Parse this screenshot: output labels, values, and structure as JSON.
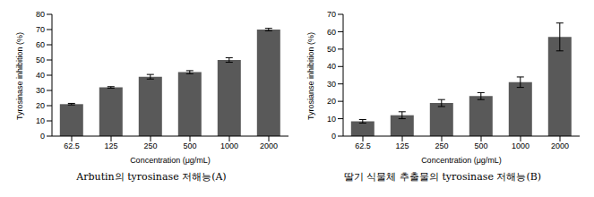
{
  "chart_data": [
    {
      "type": "bar",
      "title": "Arbutin의 tyrosinase 저해능(A)",
      "categories": [
        "62.5",
        "125",
        "250",
        "500",
        "1000",
        "2000"
      ],
      "values": [
        21,
        32,
        39,
        42,
        50,
        70
      ],
      "errors": [
        0.5,
        0.5,
        1.5,
        1,
        1.5,
        0.8
      ],
      "color": "#595959",
      "xlabel": "Concentration (μg/mL)",
      "ylabel": "Tyrosinase inhibition (%)",
      "ylim": [
        0,
        80
      ],
      "yticks": [
        0,
        10,
        20,
        30,
        40,
        50,
        60,
        70,
        80
      ],
      "grid": false
    },
    {
      "type": "bar",
      "title": "딸기 식물체 추출물의 tyrosinase 저해능(B)",
      "categories": [
        "62.5",
        "125",
        "250",
        "500",
        "1000",
        "2000"
      ],
      "values": [
        8.5,
        12,
        19,
        23,
        31,
        57
      ],
      "errors": [
        1,
        2,
        2,
        2,
        3,
        8
      ],
      "color": "#595959",
      "xlabel": "Concentration (μg/mL)",
      "ylabel": "Tyrosianse inhibition (%)",
      "ylim": [
        0,
        70
      ],
      "yticks": [
        0,
        10,
        20,
        30,
        40,
        50,
        60,
        70
      ],
      "grid": false
    }
  ]
}
